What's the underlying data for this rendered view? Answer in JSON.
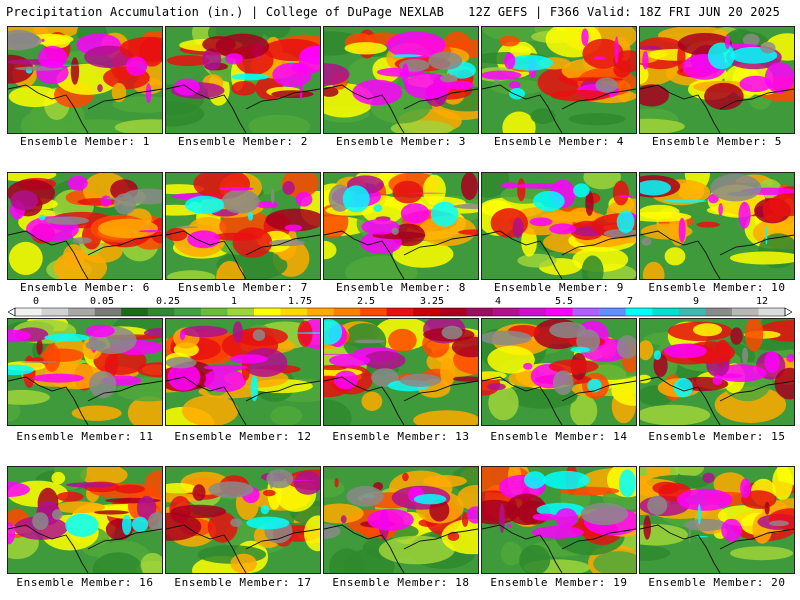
{
  "header": {
    "left": "Precipitation Accumulation (in.) | College of DuPage NEXLAB",
    "right": "12Z GEFS | F366 Valid: 18Z FRI JUN 20 2025"
  },
  "members": [
    "Ensemble Member: 1",
    "Ensemble Member: 2",
    "Ensemble Member: 3",
    "Ensemble Member: 4",
    "Ensemble Member: 5",
    "Ensemble Member: 6",
    "Ensemble Member: 7",
    "Ensemble Member: 8",
    "Ensemble Member: 9",
    "Ensemble Member: 10",
    "Ensemble Member: 11",
    "Ensemble Member: 12",
    "Ensemble Member: 13",
    "Ensemble Member: 14",
    "Ensemble Member: 15",
    "Ensemble Member: 16",
    "Ensemble Member: 17",
    "Ensemble Member: 18",
    "Ensemble Member: 19",
    "Ensemble Member: 20"
  ],
  "colorbar": {
    "tick_labels": [
      "0",
      "0.05",
      "0.25",
      "1",
      "1.75",
      "2.5",
      "3.25",
      "4",
      "5.5",
      "7",
      "9",
      "12"
    ],
    "colors": [
      "#f2f2f2",
      "#d2d2d2",
      "#a8a8a8",
      "#7a7a7a",
      "#1a6b1a",
      "#2f8a2f",
      "#3fa33f",
      "#69bd3d",
      "#9fd43a",
      "#ffff00",
      "#ffd800",
      "#ffaa00",
      "#ff8000",
      "#ff4800",
      "#e81010",
      "#c80000",
      "#a8001e",
      "#9a1060",
      "#b0108e",
      "#d010c8",
      "#ff00ff",
      "#b060ff",
      "#6090ff",
      "#00ffff",
      "#00e0d0",
      "#40b8b0",
      "#8a8a8a",
      "#b8b8b8",
      "#dcdcdc"
    ]
  }
}
